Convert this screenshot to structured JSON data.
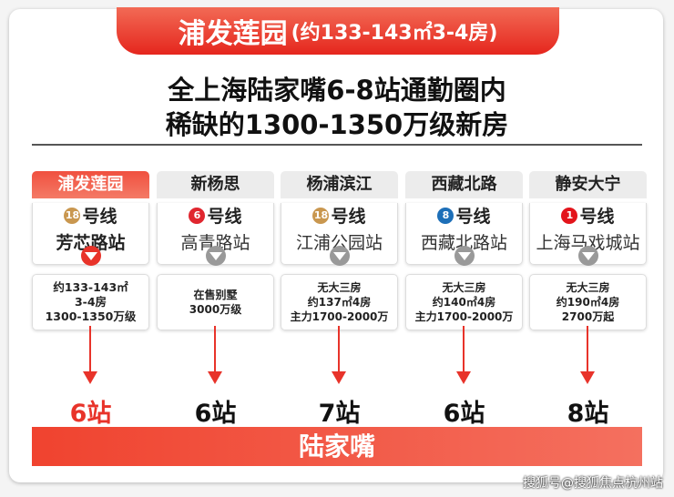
{
  "title": {
    "name": "浦发莲园",
    "detail": "(约133-143㎡3-4房)"
  },
  "headline": [
    "全上海陆家嘴6-8站通勤圈内",
    "稀缺的1300-1350万级新房"
  ],
  "columns": [
    {
      "name": "浦发莲园",
      "line_no": "18",
      "line_label": "号线",
      "line_color": "#c9974f",
      "station": "芳芯路站",
      "info": [
        "约133-143㎡",
        "3-4房",
        "1300-1350万级"
      ],
      "stops": "6站",
      "highlight": true
    },
    {
      "name": "新杨思",
      "line_no": "6",
      "line_label": "号线",
      "line_color": "#e0262f",
      "station": "高青路站",
      "info": [
        "在售别墅",
        "3000万级"
      ],
      "stops": "6站"
    },
    {
      "name": "杨浦滨江",
      "line_no": "18",
      "line_label": "号线",
      "line_color": "#c9974f",
      "station": "江浦公园站",
      "info": [
        "无大三房",
        "约137㎡4房",
        "主力1700-2000万"
      ],
      "stops": "7站"
    },
    {
      "name": "西藏北路",
      "line_no": "8",
      "line_label": "号线",
      "line_color": "#1d6fb8",
      "station": "西藏北路站",
      "info": [
        "无大三房",
        "约140㎡4房",
        "主力1700-2000万"
      ],
      "stops": "6站"
    },
    {
      "name": "静安大宁",
      "line_no": "1",
      "line_label": "号线",
      "line_color": "#e3141b",
      "station": "上海马戏城站",
      "info": [
        "无大三房",
        "约190㎡4房",
        "2700万起"
      ],
      "stops": "8站"
    }
  ],
  "destination": "陆家嘴",
  "watermark": "搜狐号@搜狐焦点杭州站"
}
